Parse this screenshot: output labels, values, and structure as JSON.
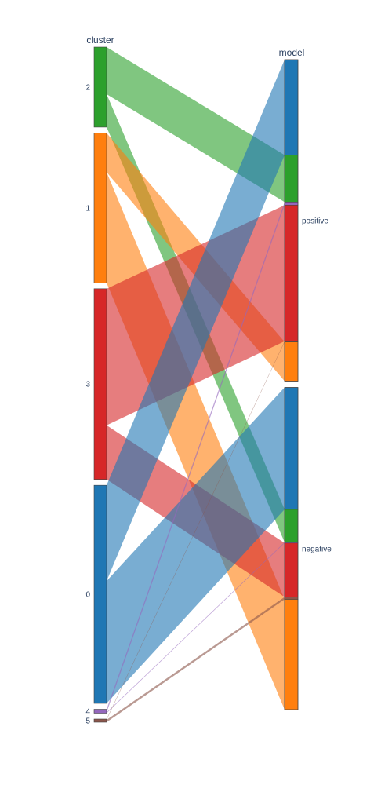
{
  "chart_data": {
    "type": "parallel-categories",
    "dimensions": [
      {
        "name": "cluster",
        "categories": [
          "2",
          "1",
          "3",
          "0",
          "4",
          "5"
        ]
      },
      {
        "name": "model",
        "categories": [
          "positive",
          "negative"
        ]
      }
    ],
    "cluster_colors": {
      "0": "#1f77b4",
      "1": "#ff7f0e",
      "2": "#2ca02c",
      "3": "#d62728",
      "4": "#9467bd",
      "5": "#8c564b"
    },
    "flows": [
      {
        "cluster": "2",
        "model": "positive",
        "count": 60
      },
      {
        "cluster": "2",
        "model": "negative",
        "count": 42
      },
      {
        "cluster": "1",
        "model": "positive",
        "count": 50
      },
      {
        "cluster": "1",
        "model": "negative",
        "count": 141
      },
      {
        "cluster": "3",
        "model": "positive",
        "count": 174
      },
      {
        "cluster": "3",
        "model": "negative",
        "count": 69
      },
      {
        "cluster": "0",
        "model": "positive",
        "count": 122
      },
      {
        "cluster": "0",
        "model": "negative",
        "count": 156
      },
      {
        "cluster": "4",
        "model": "positive",
        "count": 4
      },
      {
        "cluster": "4",
        "model": "negative",
        "count": 1
      },
      {
        "cluster": "5",
        "model": "positive",
        "count": 1
      },
      {
        "cluster": "5",
        "model": "negative",
        "count": 3
      }
    ]
  }
}
